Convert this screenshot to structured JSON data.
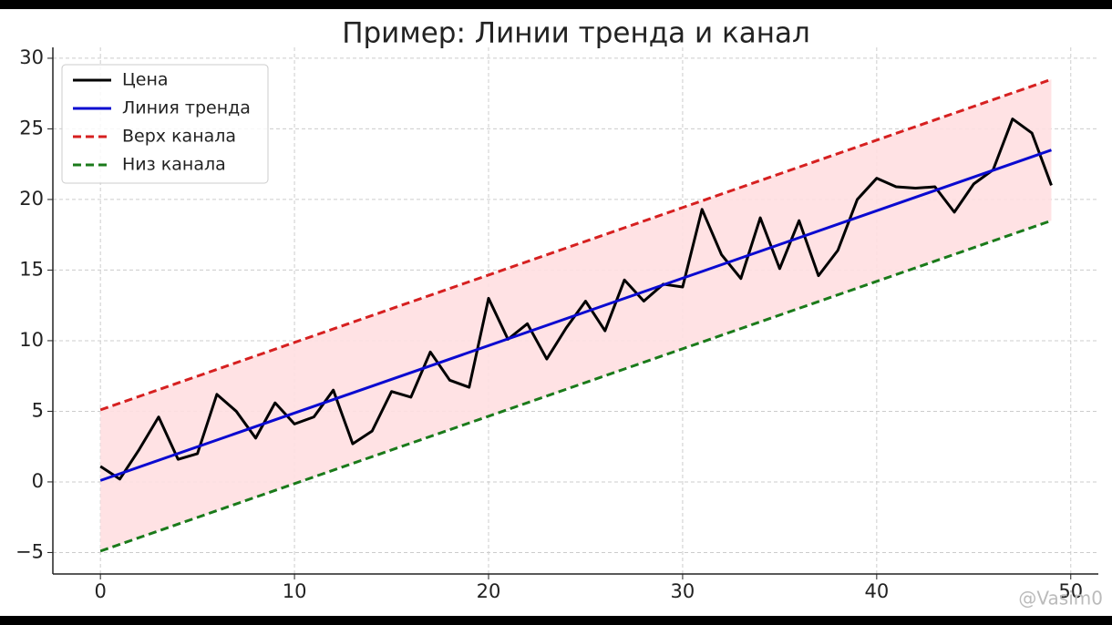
{
  "chart_data": {
    "type": "line",
    "title": "Пример: Линии тренда и канал",
    "x": [
      0,
      1,
      2,
      3,
      4,
      5,
      6,
      7,
      8,
      9,
      10,
      11,
      12,
      13,
      14,
      15,
      16,
      17,
      18,
      19,
      20,
      21,
      22,
      23,
      24,
      25,
      26,
      27,
      28,
      29,
      30,
      31,
      32,
      33,
      34,
      35,
      36,
      37,
      38,
      39,
      40,
      41,
      42,
      43,
      44,
      45,
      46,
      47,
      48,
      49
    ],
    "series": [
      {
        "name": "Цена",
        "color": "#000000",
        "linestyle": "solid",
        "values": [
          1.1,
          0.2,
          2.3,
          4.6,
          1.6,
          2.0,
          6.2,
          5.0,
          3.1,
          5.6,
          4.1,
          4.6,
          6.5,
          2.7,
          3.6,
          6.4,
          6.0,
          9.2,
          7.2,
          6.7,
          13.0,
          10.1,
          11.2,
          8.7,
          10.9,
          12.8,
          10.7,
          14.3,
          12.8,
          14.0,
          13.8,
          19.3,
          16.1,
          14.4,
          18.7,
          15.1,
          18.5,
          14.6,
          16.4,
          20.0,
          21.5,
          20.9,
          20.8,
          20.9,
          19.1,
          21.1,
          22.1,
          25.7,
          24.7,
          21.0
        ]
      },
      {
        "name": "Линия тренда",
        "color": "#0a0ad0",
        "linestyle": "solid",
        "x": [
          0,
          49
        ],
        "values": [
          0.1,
          23.5
        ]
      },
      {
        "name": "Верх канала",
        "color": "#d62020",
        "linestyle": "dashed",
        "x": [
          0,
          49
        ],
        "values": [
          5.1,
          28.5
        ]
      },
      {
        "name": "Низ канала",
        "color": "#1a7a1a",
        "linestyle": "dashed",
        "x": [
          0,
          49
        ],
        "values": [
          -4.9,
          18.5
        ]
      }
    ],
    "channel_fill": "#ffdfe1",
    "xlim": [
      -2.45,
      51.42
    ],
    "ylim": [
      -6.52,
      30.77
    ],
    "xticks": [
      0,
      10,
      20,
      30,
      40,
      50
    ],
    "yticks": [
      {
        "value": -5,
        "label": "−5"
      },
      0,
      5,
      10,
      15,
      20,
      25,
      30
    ],
    "grid": true,
    "legend": "upper-left"
  },
  "watermark": "@Vasim0"
}
